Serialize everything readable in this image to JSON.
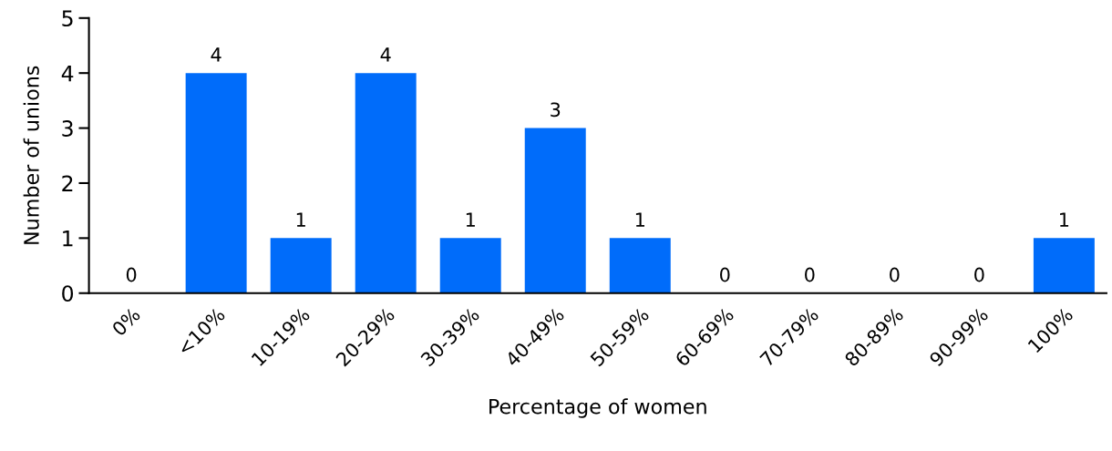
{
  "chart_data": {
    "type": "bar",
    "xlabel": "Percentage of women",
    "ylabel": "Number of unions",
    "categories": [
      "0%",
      "<10%",
      "10-19%",
      "20-29%",
      "30-39%",
      "40-49%",
      "50-59%",
      "60-69%",
      "70-79%",
      "80-89%",
      "90-99%",
      "100%"
    ],
    "values": [
      0,
      4,
      1,
      4,
      1,
      3,
      1,
      0,
      0,
      0,
      0,
      1
    ],
    "color": "#006cfa",
    "ylim": [
      0,
      5
    ],
    "yticks": [
      0,
      1,
      2,
      3,
      4,
      5
    ],
    "grid": false,
    "data_labels": true
  }
}
